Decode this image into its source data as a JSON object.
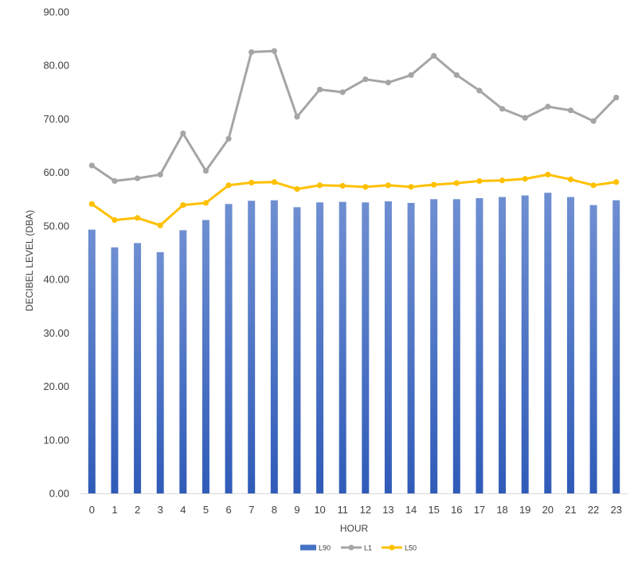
{
  "chart_data": {
    "type": "bar",
    "categories": [
      "0",
      "1",
      "2",
      "3",
      "4",
      "5",
      "6",
      "7",
      "8",
      "9",
      "10",
      "11",
      "12",
      "13",
      "14",
      "15",
      "16",
      "17",
      "18",
      "19",
      "20",
      "21",
      "22",
      "23"
    ],
    "xlabel": "HOUR",
    "ylabel": "DECIBEL LEVEL (DBA)",
    "ylim": [
      0,
      90
    ],
    "yticks": [
      "0.00",
      "10.00",
      "20.00",
      "30.00",
      "40.00",
      "50.00",
      "60.00",
      "70.00",
      "80.00",
      "90.00"
    ],
    "grid": false,
    "legend_position": "bottom",
    "series": [
      {
        "name": "L90",
        "type": "bar",
        "color": "#4472C4",
        "values": [
          49.3,
          46.0,
          46.8,
          45.1,
          49.2,
          51.1,
          54.1,
          54.7,
          54.8,
          53.5,
          54.4,
          54.5,
          54.4,
          54.6,
          54.3,
          55.0,
          55.0,
          55.2,
          55.4,
          55.7,
          56.2,
          55.4,
          53.9,
          54.8
        ]
      },
      {
        "name": "L1",
        "type": "line",
        "color": "#A5A5A5",
        "values": [
          61.3,
          58.4,
          58.9,
          59.6,
          67.3,
          60.3,
          66.3,
          82.5,
          82.7,
          70.4,
          75.5,
          75.0,
          77.4,
          76.8,
          78.2,
          81.8,
          78.2,
          75.3,
          71.9,
          70.2,
          72.3,
          71.6,
          69.6,
          74.0
        ]
      },
      {
        "name": "L50",
        "type": "line",
        "color": "#FFC000",
        "values": [
          54.1,
          51.1,
          51.5,
          50.1,
          53.9,
          54.3,
          57.6,
          58.1,
          58.2,
          56.9,
          57.6,
          57.5,
          57.3,
          57.6,
          57.3,
          57.7,
          58.0,
          58.4,
          58.5,
          58.8,
          59.6,
          58.7,
          57.6,
          58.2
        ]
      }
    ]
  }
}
